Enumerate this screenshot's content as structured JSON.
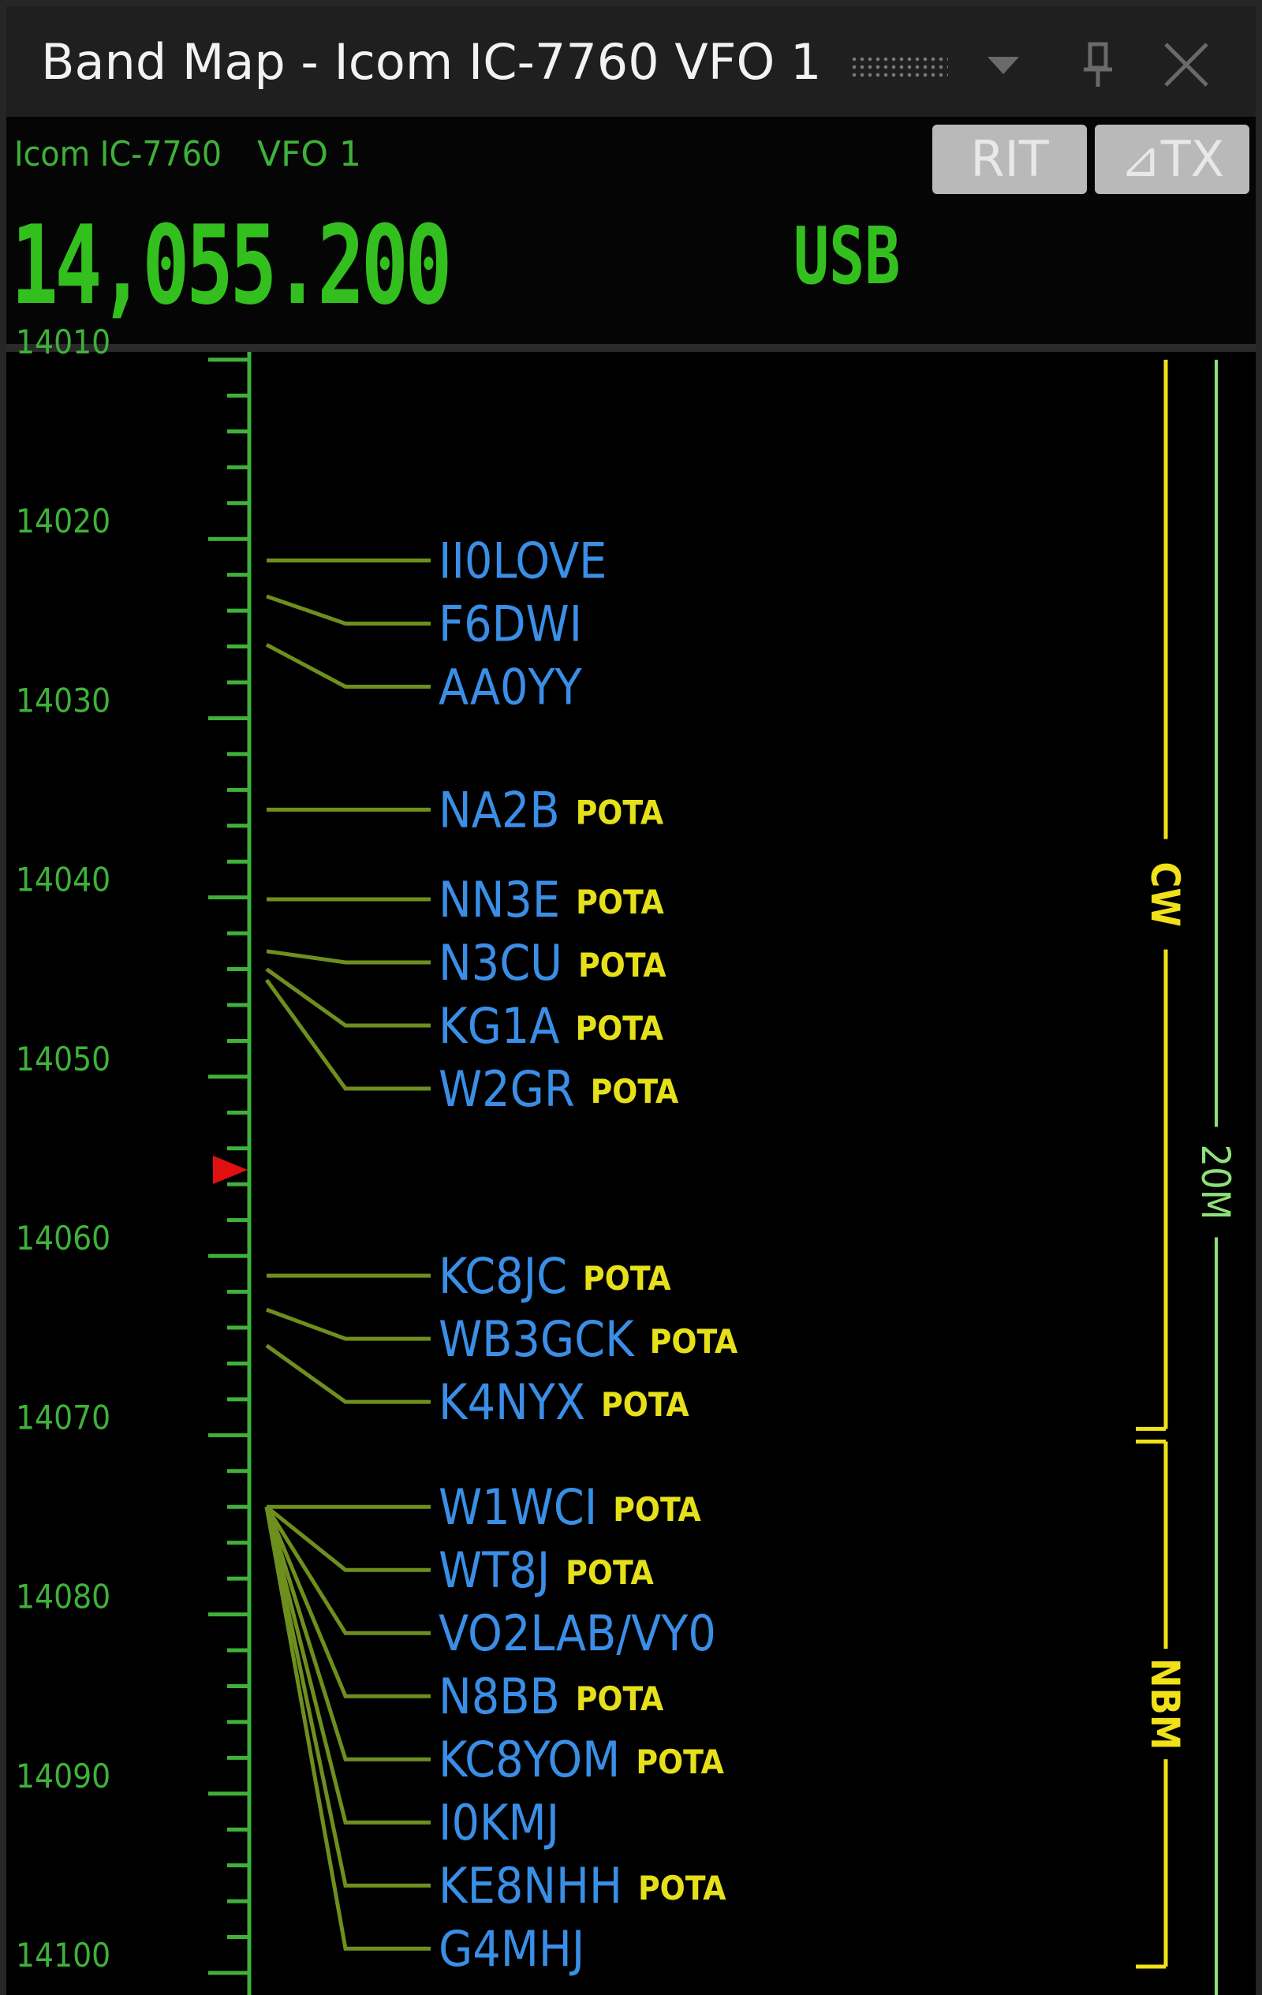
{
  "window": {
    "title": "Band Map - Icom IC-7760 VFO 1"
  },
  "header": {
    "radio_name": "Icom IC-7760",
    "vfo_name": "VFO 1",
    "frequency": "14,055.200",
    "mode": "USB",
    "rit_label": "RIT",
    "delta_tx_label": "⊿TX"
  },
  "colors": {
    "frequency_green": "#33c01f",
    "scale_green": "#3fb13a",
    "leader_line": "#6e8f1e",
    "callsign_blue": "#3a8ee6",
    "pota_yellow": "#e6e01a",
    "segment_yellow": "#f0e11a",
    "band_green": "#8ee07a",
    "vfo_marker_red": "#e01010"
  },
  "bandmap": {
    "freq_min_khz": 14010,
    "freq_max_khz": 14100,
    "tick_labels": [
      "14010",
      "14020",
      "14030",
      "14040",
      "14050",
      "14060",
      "14070",
      "14080",
      "14090",
      "14100"
    ],
    "vfo_khz": 14055.2,
    "segments": [
      {
        "label": "CW",
        "from_khz": 14010,
        "to_khz": 14070
      },
      {
        "label": "NBM",
        "from_khz": 14070,
        "to_khz": 14100
      }
    ],
    "band": {
      "label": "20M",
      "from_khz": 14010,
      "to_khz": 14100
    },
    "spots": [
      {
        "call": "II0LOVE",
        "tag": "",
        "khz": 14021.2
      },
      {
        "call": "F6DWI",
        "tag": "",
        "khz": 14023.2
      },
      {
        "call": "AA0YY",
        "tag": "",
        "khz": 14025.9
      },
      {
        "call": "NA2B",
        "tag": "POTA",
        "khz": 14035.1
      },
      {
        "call": "NN3E",
        "tag": "POTA",
        "khz": 14040.1
      },
      {
        "call": "N3CU",
        "tag": "POTA",
        "khz": 14043.0
      },
      {
        "call": "KG1A",
        "tag": "POTA",
        "khz": 14044.0
      },
      {
        "call": "W2GR",
        "tag": "POTA",
        "khz": 14044.6
      },
      {
        "call": "KC8JC",
        "tag": "POTA",
        "khz": 14061.1
      },
      {
        "call": "WB3GCK",
        "tag": "POTA",
        "khz": 14063.0
      },
      {
        "call": "K4NYX",
        "tag": "POTA",
        "khz": 14065.0
      },
      {
        "call": "W1WCI",
        "tag": "POTA",
        "khz": 14074.0
      },
      {
        "call": "WT8J",
        "tag": "POTA",
        "khz": 14074.0
      },
      {
        "call": "VO2LAB/VY0",
        "tag": "",
        "khz": 14074.0
      },
      {
        "call": "N8BB",
        "tag": "POTA",
        "khz": 14074.0
      },
      {
        "call": "KC8YOM",
        "tag": "POTA",
        "khz": 14074.0
      },
      {
        "call": "I0KMJ",
        "tag": "",
        "khz": 14074.0
      },
      {
        "call": "KE8NHH",
        "tag": "POTA",
        "khz": 14074.0
      },
      {
        "call": "G4MHJ",
        "tag": "",
        "khz": 14074.0
      }
    ]
  }
}
